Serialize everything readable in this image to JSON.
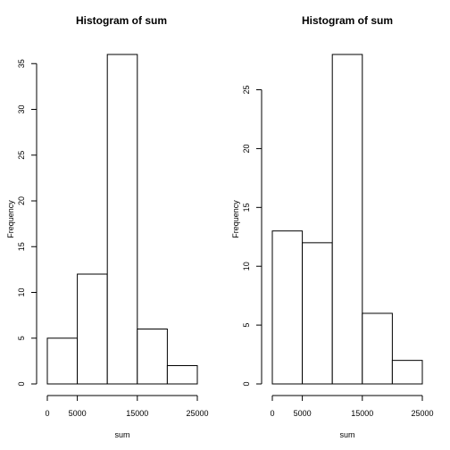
{
  "chart_data": [
    {
      "type": "bar",
      "title": "Histogram of sum",
      "xlabel": "sum",
      "ylabel": "Frequency",
      "bins": [
        {
          "start": 0,
          "end": 5000,
          "count": 5
        },
        {
          "start": 5000,
          "end": 10000,
          "count": 12
        },
        {
          "start": 10000,
          "end": 15000,
          "count": 36
        },
        {
          "start": 15000,
          "end": 20000,
          "count": 6
        },
        {
          "start": 20000,
          "end": 25000,
          "count": 2
        }
      ],
      "xlim": [
        0,
        25000
      ],
      "ylim": [
        0,
        36
      ],
      "x_ticks": [
        0,
        5000,
        15000,
        25000
      ],
      "y_ticks": [
        0,
        5,
        10,
        15,
        20,
        25,
        30,
        35
      ],
      "grid": false
    },
    {
      "type": "bar",
      "title": "Histogram of sum",
      "xlabel": "sum",
      "ylabel": "Frequency",
      "bins": [
        {
          "start": 0,
          "end": 5000,
          "count": 13
        },
        {
          "start": 5000,
          "end": 10000,
          "count": 12
        },
        {
          "start": 10000,
          "end": 15000,
          "count": 28
        },
        {
          "start": 15000,
          "end": 20000,
          "count": 6
        },
        {
          "start": 20000,
          "end": 25000,
          "count": 2
        }
      ],
      "xlim": [
        0,
        25000
      ],
      "ylim": [
        0,
        28
      ],
      "x_ticks": [
        0,
        5000,
        15000,
        25000
      ],
      "y_ticks": [
        0,
        5,
        10,
        15,
        20,
        25
      ],
      "grid": false
    }
  ]
}
